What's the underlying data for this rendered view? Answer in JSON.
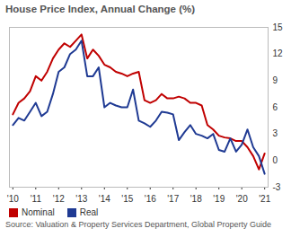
{
  "chart_data": {
    "type": "line",
    "title": "House Price Index, Annual Change (%)",
    "caption": "Source: Valuation & Property Services Department, Global Property Guide",
    "x": [
      2010,
      2010.25,
      2010.5,
      2010.75,
      2011,
      2011.25,
      2011.5,
      2011.75,
      2012,
      2012.25,
      2012.5,
      2012.75,
      2013,
      2013.25,
      2013.5,
      2013.75,
      2014,
      2014.25,
      2014.5,
      2014.75,
      2015,
      2015.25,
      2015.5,
      2015.75,
      2016,
      2016.25,
      2016.5,
      2016.75,
      2017,
      2017.25,
      2017.5,
      2017.75,
      2018,
      2018.25,
      2018.5,
      2018.75,
      2019,
      2019.25,
      2019.5,
      2019.75,
      2020,
      2020.25,
      2020.5,
      2020.75,
      2021
    ],
    "series": [
      {
        "name": "Nominal",
        "color": "#c00000",
        "values": [
          5.2,
          6.5,
          7.0,
          7.8,
          9.5,
          9.0,
          10.0,
          11.5,
          12.5,
          13.2,
          12.8,
          13.5,
          14.2,
          11.5,
          12.5,
          11.8,
          10.8,
          10.5,
          10.0,
          9.8,
          9.5,
          9.8,
          10.0,
          6.8,
          6.5,
          6.8,
          7.5,
          7.0,
          7.0,
          7.2,
          7.0,
          6.5,
          6.5,
          6.2,
          4.0,
          3.5,
          2.8,
          2.6,
          2.5,
          2.2,
          2.2,
          1.5,
          0.5,
          -1.0,
          0.8
        ]
      },
      {
        "name": "Real",
        "color": "#1f3a93",
        "values": [
          4.0,
          4.8,
          4.5,
          5.5,
          6.5,
          5.0,
          5.5,
          7.5,
          10.0,
          10.5,
          12.0,
          12.5,
          13.5,
          9.5,
          9.5,
          10.5,
          6.0,
          6.5,
          6.2,
          6.0,
          6.0,
          8.0,
          4.5,
          4.2,
          3.8,
          4.5,
          5.5,
          5.4,
          5.2,
          2.3,
          3.2,
          4.0,
          3.0,
          2.8,
          2.5,
          3.0,
          1.2,
          1.0,
          2.5,
          1.0,
          1.8,
          3.5,
          1.5,
          0.5,
          -1.5
        ]
      }
    ],
    "xlim": [
      2009.85,
      2021.15
    ],
    "xticks": [
      {
        "value": 2010,
        "label": "'10"
      },
      {
        "value": 2011,
        "label": "'11"
      },
      {
        "value": 2012,
        "label": "'12"
      },
      {
        "value": 2013,
        "label": "'13"
      },
      {
        "value": 2014,
        "label": "'14"
      },
      {
        "value": 2015,
        "label": "'15"
      },
      {
        "value": 2016,
        "label": "'16"
      },
      {
        "value": 2017,
        "label": "'17"
      },
      {
        "value": 2018,
        "label": "'18"
      },
      {
        "value": 2019,
        "label": "'19"
      },
      {
        "value": 2020,
        "label": "'20"
      },
      {
        "value": 2021,
        "label": "'21"
      }
    ],
    "ylim": [
      -3,
      15
    ],
    "yticks": [
      -3,
      0,
      3,
      6,
      9,
      12,
      15
    ],
    "grid": false,
    "legend": "bottom-left"
  }
}
